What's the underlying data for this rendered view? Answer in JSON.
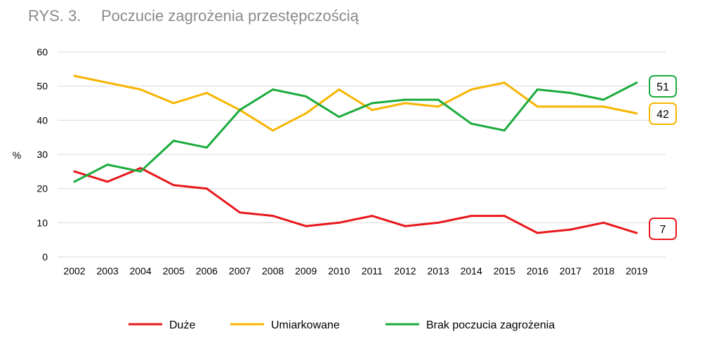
{
  "header": {
    "figure_number": "RYS. 3.",
    "title": "Poczucie zagrożenia przestępczością"
  },
  "chart_data": {
    "type": "line",
    "x": [
      "2002",
      "2003",
      "2004",
      "2005",
      "2006",
      "2007",
      "2008",
      "2009",
      "2010",
      "2011",
      "2012",
      "2013",
      "2014",
      "2015",
      "2016",
      "2017",
      "2018",
      "2019"
    ],
    "ylabel": "%",
    "ylim": [
      0,
      60
    ],
    "yticks": [
      0,
      10,
      20,
      30,
      40,
      50,
      60
    ],
    "grid": true,
    "legend_position": "bottom",
    "series": [
      {
        "name": "Duże",
        "color": "#e8171c",
        "values": [
          25,
          22,
          26,
          21,
          20,
          13,
          12,
          9,
          10,
          12,
          9,
          10,
          12,
          12,
          7,
          8,
          10,
          7
        ],
        "end_label": "7"
      },
      {
        "name": "Umiarkowane",
        "color": "#f7b500",
        "values": [
          53,
          51,
          49,
          45,
          48,
          43,
          37,
          42,
          49,
          43,
          45,
          44,
          49,
          51,
          44,
          44,
          44,
          42
        ],
        "end_label": "42"
      },
      {
        "name": "Brak poczucia zagrożenia",
        "color": "#1aab3c",
        "values": [
          22,
          27,
          25,
          34,
          32,
          43,
          49,
          47,
          41,
          45,
          46,
          46,
          39,
          37,
          49,
          48,
          46,
          51
        ],
        "end_label": "51"
      }
    ]
  }
}
